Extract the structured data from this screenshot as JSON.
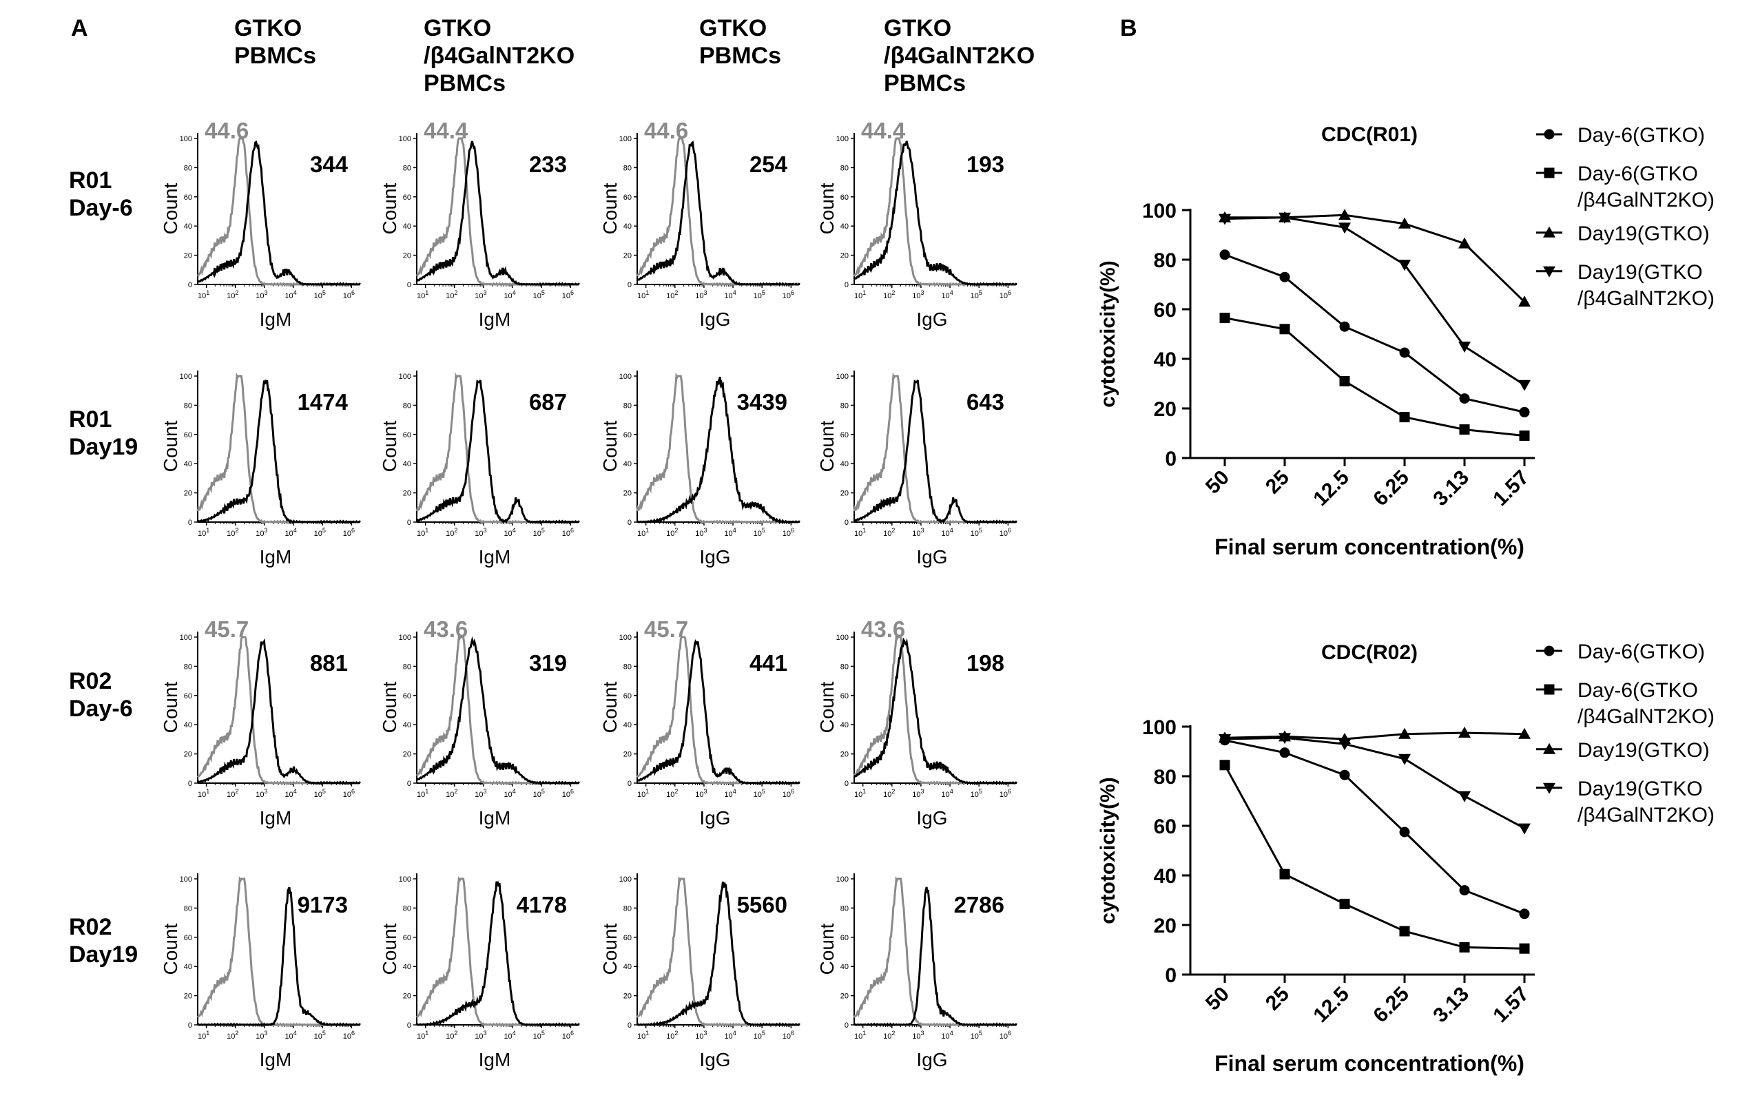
{
  "panel_a": {
    "label": "A",
    "columns": [
      {
        "lines": [
          "GTKO",
          "PBMCs"
        ]
      },
      {
        "lines": [
          "GTKO",
          "/β4GalNT2KO",
          "PBMCs"
        ]
      },
      {
        "lines": [
          "GTKO",
          "PBMCs"
        ]
      },
      {
        "lines": [
          "GTKO",
          "/β4GalNT2KO",
          "PBMCs"
        ]
      }
    ],
    "rows": [
      {
        "lines": [
          "R01",
          "Day-6"
        ]
      },
      {
        "lines": [
          "R01",
          "Day19"
        ]
      },
      {
        "lines": [
          "R02",
          "Day-6"
        ]
      },
      {
        "lines": [
          "R02",
          "Day19"
        ]
      }
    ],
    "y_label": "Count",
    "y_ticks": [
      "0",
      "20",
      "40",
      "60",
      "80",
      "100"
    ],
    "x_tick_mantissa": "10",
    "x_tick_exponents": [
      "1",
      "2",
      "3",
      "4",
      "5",
      "6"
    ],
    "histogram_colors": {
      "control": "#8a8a8a",
      "sample": "#000000"
    },
    "plots": [
      {
        "xlabel": "IgM",
        "mfi": "344",
        "control_value": "44.6",
        "control_peak": 2.22,
        "sample_peak": 2.72,
        "sample_shape": "bump"
      },
      {
        "xlabel": "IgM",
        "mfi": "233",
        "control_value": "44.4",
        "control_peak": 2.22,
        "sample_peak": 2.62,
        "sample_shape": "bump"
      },
      {
        "xlabel": "IgG",
        "mfi": "254",
        "control_value": "44.6",
        "control_peak": 2.22,
        "sample_peak": 2.58,
        "sample_shape": "bump"
      },
      {
        "xlabel": "IgG",
        "mfi": "193",
        "control_value": "44.4",
        "control_peak": 2.22,
        "sample_peak": 2.5,
        "sample_shape": "wide"
      },
      {
        "xlabel": "IgM",
        "mfi": "1474",
        "control_value": "",
        "control_peak": 2.15,
        "sample_peak": 3.05,
        "sample_shape": "plain"
      },
      {
        "xlabel": "IgM",
        "mfi": "687",
        "control_value": "",
        "control_peak": 2.15,
        "sample_peak": 2.85,
        "sample_shape": "peak2"
      },
      {
        "xlabel": "IgG",
        "mfi": "3439",
        "control_value": "",
        "control_peak": 2.15,
        "sample_peak": 3.55,
        "sample_shape": "wide"
      },
      {
        "xlabel": "IgG",
        "mfi": "643",
        "control_value": "",
        "control_peak": 2.15,
        "sample_peak": 2.85,
        "sample_shape": "peak2"
      },
      {
        "xlabel": "IgM",
        "mfi": "881",
        "control_value": "45.7",
        "control_peak": 2.3,
        "sample_peak": 2.95,
        "sample_shape": "bump"
      },
      {
        "xlabel": "IgM",
        "mfi": "319",
        "control_value": "43.6",
        "control_peak": 2.25,
        "sample_peak": 2.65,
        "sample_shape": "wide"
      },
      {
        "xlabel": "IgG",
        "mfi": "441",
        "control_value": "45.7",
        "control_peak": 2.3,
        "sample_peak": 2.75,
        "sample_shape": "bump"
      },
      {
        "xlabel": "IgG",
        "mfi": "198",
        "control_value": "43.6",
        "control_peak": 2.25,
        "sample_peak": 2.45,
        "sample_shape": "wide"
      },
      {
        "xlabel": "IgM",
        "mfi": "9173",
        "control_value": "",
        "control_peak": 2.25,
        "sample_peak": 3.85,
        "sample_shape": "narrow"
      },
      {
        "xlabel": "IgM",
        "mfi": "4178",
        "control_value": "",
        "control_peak": 2.25,
        "sample_peak": 3.5,
        "sample_shape": "plain"
      },
      {
        "xlabel": "IgG",
        "mfi": "5560",
        "control_value": "",
        "control_peak": 2.25,
        "sample_peak": 3.7,
        "sample_shape": "plain"
      },
      {
        "xlabel": "IgG",
        "mfi": "2786",
        "control_value": "",
        "control_peak": 2.25,
        "sample_peak": 3.2,
        "sample_shape": "narrow"
      }
    ]
  },
  "panel_b": {
    "label": "B"
  },
  "chart_data": [
    {
      "type": "line",
      "title": "CDC(R01)",
      "xlabel": "Final  serum concentration(%)",
      "ylabel": "cytotoxicity(%)",
      "categories": [
        "50",
        "25",
        "12.5",
        "6.25",
        "3.13",
        "1.57"
      ],
      "ylim": [
        0,
        100
      ],
      "yticks": [
        0,
        20,
        40,
        60,
        80,
        100
      ],
      "legend_position": "right",
      "series": [
        {
          "name_lines": [
            "Day-6(GTKO)"
          ],
          "marker": "circle",
          "values": [
            82,
            73,
            53,
            42.5,
            24,
            18.5
          ]
        },
        {
          "name_lines": [
            "Day-6(GTKO",
            "/β4GalNT2KO)"
          ],
          "marker": "square",
          "values": [
            56.5,
            52,
            31,
            16.5,
            11.5,
            9
          ]
        },
        {
          "name_lines": [
            "Day19(GTKO)"
          ],
          "marker": "triangle-up",
          "values": [
            97,
            97,
            98,
            94.5,
            86.5,
            63
          ]
        },
        {
          "name_lines": [
            "Day19(GTKO",
            "/β4GalNT2KO)"
          ],
          "marker": "triangle-down",
          "values": [
            96.5,
            97,
            93,
            78,
            45,
            29.5
          ]
        }
      ]
    },
    {
      "type": "line",
      "title": "CDC(R02)",
      "xlabel": "Final  serum concentration(%)",
      "ylabel": "cytotoxicity(%)",
      "categories": [
        "50",
        "25",
        "12.5",
        "6.25",
        "3.13",
        "1.57"
      ],
      "ylim": [
        0,
        100
      ],
      "yticks": [
        0,
        20,
        40,
        60,
        80,
        100
      ],
      "legend_position": "right",
      "series": [
        {
          "name_lines": [
            "Day-6(GTKO)"
          ],
          "marker": "circle",
          "values": [
            94.5,
            89.5,
            80.5,
            57.5,
            34,
            24.5
          ]
        },
        {
          "name_lines": [
            "Day-6(GTKO",
            "/β4GalNT2KO)"
          ],
          "marker": "square",
          "values": [
            84.5,
            40.5,
            28.5,
            17.5,
            11,
            10.5
          ]
        },
        {
          "name_lines": [
            "Day19(GTKO)"
          ],
          "marker": "triangle-up",
          "values": [
            95.5,
            96,
            95,
            97,
            97.5,
            97
          ]
        },
        {
          "name_lines": [
            "Day19(GTKO",
            "/β4GalNT2KO)"
          ],
          "marker": "triangle-down",
          "values": [
            95,
            95.5,
            93,
            87,
            72,
            59
          ]
        }
      ]
    }
  ]
}
